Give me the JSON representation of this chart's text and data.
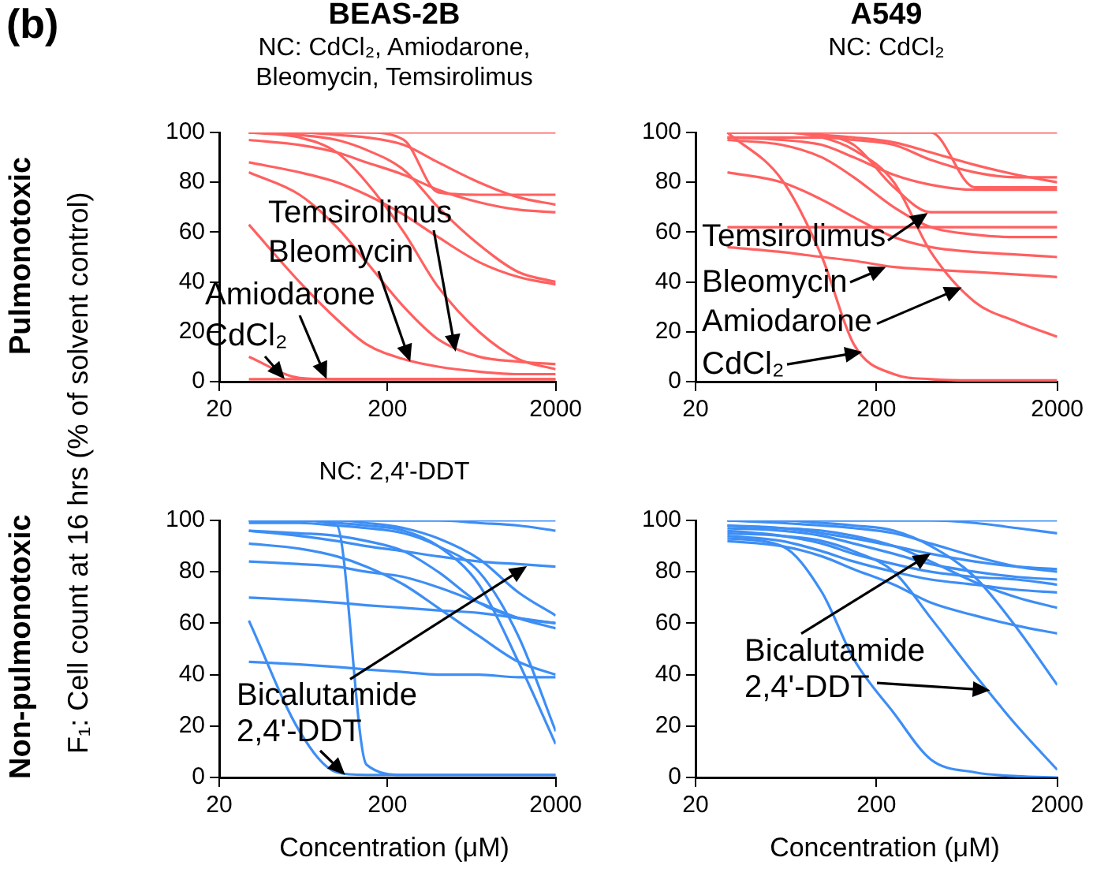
{
  "chart_data": [
    {
      "type": "line",
      "title": "BEAS-2B",
      "subtitle": "NC: CdCl₂, Amiodarone, Bleomycin, Temsirolimus",
      "ylabel": "F₁: Cell count at 16 hrs (% of solvent control)",
      "color": "#ff6060",
      "log": "x",
      "xlim": [
        20,
        2000
      ],
      "xticks": [
        20,
        200,
        2000
      ],
      "ylim": [
        0,
        100
      ],
      "yticks": [
        0,
        20,
        40,
        60,
        80,
        100
      ],
      "x": [
        30,
        60,
        100,
        150,
        250,
        400,
        700,
        1200,
        2000
      ],
      "annotations": [
        "(b)",
        "Pulmonotoxic",
        {
          "text": "Temsirolimus",
          "x": 508,
          "y": 12
        },
        {
          "text": "Bleomycin",
          "x": 273,
          "y": 8
        },
        {
          "text": "Amiodarone",
          "x": 87,
          "y": 1
        },
        {
          "text": "CdCl₂",
          "x": 49,
          "y": 1
        }
      ],
      "series": [
        {
          "values": [
            100,
            100,
            100,
            100,
            100,
            100,
            100,
            100,
            100
          ]
        },
        {
          "values": [
            100,
            100,
            100,
            100,
            97,
            76,
            75,
            75,
            75
          ]
        },
        {
          "values": [
            100,
            100,
            99,
            98,
            95,
            88,
            80,
            74,
            71
          ]
        },
        {
          "values": [
            97,
            95,
            92,
            88,
            83,
            77,
            72,
            69,
            68
          ]
        },
        {
          "values": [
            88,
            84,
            80,
            75,
            67,
            58,
            48,
            42,
            39
          ]
        },
        {
          "values": [
            100,
            99,
            97,
            93,
            85,
            70,
            55,
            44,
            40
          ]
        },
        {
          "values": [
            100,
            98,
            92,
            80,
            60,
            38,
            20,
            9,
            5
          ]
        },
        {
          "values": [
            84,
            75,
            62,
            48,
            30,
            17,
            10,
            8,
            7
          ]
        },
        {
          "values": [
            63,
            40,
            25,
            15,
            9,
            6,
            4,
            3,
            3
          ]
        },
        {
          "values": [
            1,
            1,
            1,
            1,
            1,
            1,
            1,
            1,
            1
          ]
        },
        {
          "values": [
            10,
            1.5,
            1,
            1,
            1,
            1,
            1,
            1,
            1
          ]
        }
      ]
    },
    {
      "type": "line",
      "title": "A549",
      "subtitle": "NC: CdCl₂",
      "color": "#ff6060",
      "log": "x",
      "xlim": [
        20,
        2000
      ],
      "xticks": [
        20,
        200,
        2000
      ],
      "ylim": [
        0,
        100
      ],
      "yticks": [
        0,
        20,
        40,
        60,
        80,
        100
      ],
      "x": [
        30,
        60,
        100,
        150,
        250,
        400,
        700,
        1200,
        2000
      ],
      "annotations": [
        {
          "text": "Temsirolimus",
          "x": 385,
          "y": 68
        },
        {
          "text": "Bleomycin",
          "x": 226,
          "y": 46
        },
        {
          "text": "Amiodarone",
          "x": 593,
          "y": 38
        },
        {
          "text": "CdCl₂",
          "x": 167,
          "y": 12
        }
      ],
      "series": [
        {
          "values": [
            100,
            100,
            100,
            100,
            100,
            100,
            100,
            100,
            100
          ]
        },
        {
          "values": [
            100,
            100,
            100,
            100,
            100,
            100,
            78,
            78,
            78
          ]
        },
        {
          "values": [
            100,
            100,
            99,
            98,
            96,
            92,
            87,
            83,
            80
          ]
        },
        {
          "values": [
            98,
            98,
            98,
            97,
            95,
            89,
            84,
            82,
            82
          ]
        },
        {
          "values": [
            98,
            97,
            95,
            90,
            83,
            79,
            77,
            77,
            77
          ]
        },
        {
          "values": [
            100,
            100,
            99,
            95,
            78,
            68,
            68,
            68,
            68
          ]
        },
        {
          "values": [
            54,
            52,
            50,
            48.5,
            46,
            45,
            44,
            43,
            42
          ]
        },
        {
          "values": [
            100,
            100,
            98,
            93,
            80,
            52,
            32,
            24,
            18
          ]
        },
        {
          "values": [
            100,
            81,
            50,
            15,
            3,
            1,
            0.5,
            0.5,
            0.5
          ]
        },
        {
          "values": [
            84,
            80,
            73,
            66,
            58,
            54,
            52,
            51,
            50
          ]
        },
        {
          "values": [
            97,
            95,
            90,
            82,
            70,
            62,
            59,
            58,
            58
          ]
        },
        {
          "values": [
            62,
            62,
            62,
            62,
            62,
            62,
            62,
            62,
            62
          ]
        }
      ]
    },
    {
      "type": "line",
      "subtitle": "NC: 2,4'-DDT",
      "xlabel": "Concentration (μM)",
      "color": "#3d8ef5",
      "log": "x",
      "xlim": [
        20,
        2000
      ],
      "xticks": [
        20,
        200,
        2000
      ],
      "ylim": [
        0,
        100
      ],
      "yticks": [
        0,
        20,
        40,
        60,
        80,
        100
      ],
      "x": [
        30,
        60,
        100,
        150,
        250,
        400,
        700,
        1200,
        2000
      ],
      "annotations": [
        "Non-pulmonotoxic",
        {
          "text": "Bicalutamide",
          "x": 1350,
          "y": 82
        },
        {
          "text": "2,4'-DDT",
          "x": 112,
          "y": 1
        }
      ],
      "series": [
        {
          "values": [
            100,
            100,
            100,
            100,
            100,
            100,
            100,
            100,
            100
          ]
        },
        {
          "values": [
            100,
            100,
            100,
            100,
            100,
            100,
            99,
            98,
            96
          ]
        },
        {
          "values": [
            100,
            100,
            98,
            5,
            1,
            1,
            1,
            1,
            1
          ]
        },
        {
          "values": [
            61,
            18,
            2,
            1,
            1,
            1,
            1,
            1,
            1
          ]
        },
        {
          "values": [
            96,
            95,
            94,
            92,
            88,
            80,
            68,
            62,
            60
          ]
        },
        {
          "values": [
            91,
            89,
            86,
            82,
            75,
            66,
            55,
            45,
            40
          ]
        },
        {
          "values": [
            84,
            83,
            82,
            80,
            78,
            74,
            68,
            62,
            58
          ]
        },
        {
          "values": [
            70,
            69,
            68,
            67,
            66,
            65,
            64,
            62,
            60
          ]
        },
        {
          "values": [
            45,
            44,
            43,
            42,
            41,
            40,
            40,
            39,
            39
          ]
        },
        {
          "values": [
            100,
            100,
            99,
            98,
            96,
            90,
            75,
            45,
            13
          ]
        },
        {
          "values": [
            99,
            99,
            98,
            97,
            95,
            90,
            80,
            55,
            18
          ]
        },
        {
          "values": [
            96,
            94,
            92,
            90,
            88,
            86,
            84,
            83,
            82
          ]
        },
        {
          "values": [
            100,
            100,
            100,
            99,
            97,
            93,
            85,
            72,
            63
          ]
        }
      ]
    },
    {
      "type": "line",
      "xlabel": "Concentration (μM)",
      "color": "#3d8ef5",
      "log": "x",
      "xlim": [
        20,
        2000
      ],
      "xticks": [
        20,
        200,
        2000
      ],
      "ylim": [
        0,
        100
      ],
      "yticks": [
        0,
        20,
        40,
        60,
        80,
        100
      ],
      "x": [
        30,
        60,
        100,
        150,
        250,
        400,
        700,
        1200,
        2000
      ],
      "annotations": [
        {
          "text": "Bicalutamide",
          "x": 399,
          "y": 87
        },
        {
          "text": "2,4'-DDT",
          "x": 851,
          "y": 34
        }
      ],
      "series": [
        {
          "values": [
            100,
            100,
            100,
            100,
            100,
            100,
            100,
            100,
            100
          ]
        },
        {
          "values": [
            100,
            100,
            100,
            100,
            100,
            100,
            99,
            97,
            95
          ]
        },
        {
          "values": [
            100,
            99,
            98,
            97,
            95,
            91,
            86,
            82,
            80
          ]
        },
        {
          "values": [
            97,
            96,
            94,
            91,
            87,
            83,
            80,
            78,
            77
          ]
        },
        {
          "values": [
            96,
            94,
            91,
            87,
            83,
            80,
            78,
            77,
            75
          ]
        },
        {
          "values": [
            94,
            92,
            88,
            84,
            80,
            77,
            75,
            73,
            72
          ]
        },
        {
          "values": [
            98,
            97,
            96,
            94,
            90,
            84,
            76,
            70,
            66
          ]
        },
        {
          "values": [
            92,
            90,
            86,
            81,
            75,
            68,
            63,
            59,
            56
          ]
        },
        {
          "values": [
            100,
            100,
            99,
            98,
            96,
            90,
            78,
            58,
            36
          ]
        },
        {
          "values": [
            98,
            97,
            95,
            93,
            90,
            87,
            84,
            82,
            81
          ]
        },
        {
          "values": [
            95,
            94,
            92,
            88,
            80,
            62,
            40,
            20,
            3
          ]
        },
        {
          "values": [
            93,
            90,
            72,
            46,
            25,
            7,
            2,
            0.5,
            0
          ]
        }
      ]
    }
  ]
}
